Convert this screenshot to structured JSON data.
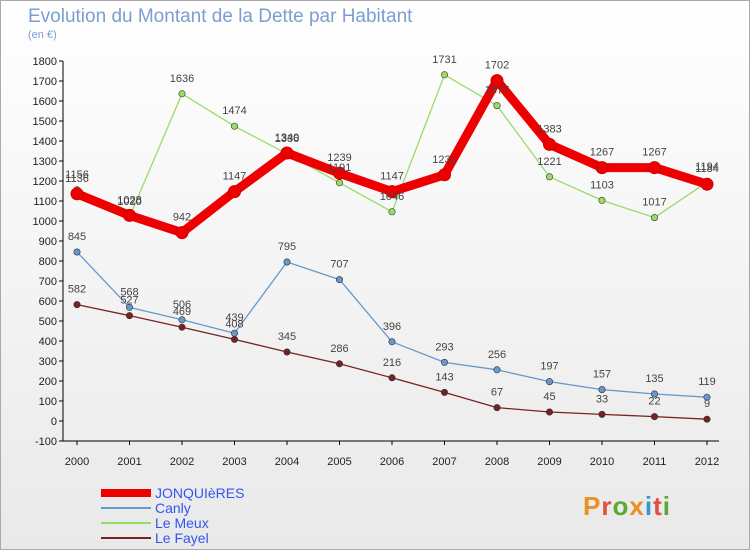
{
  "title": "Evolution du Montant de la Dette par Habitant",
  "subtitle": "(en €)",
  "logo": "Proxiti",
  "chart_data": {
    "type": "line",
    "x": [
      "2000",
      "2001",
      "2002",
      "2003",
      "2004",
      "2005",
      "2006",
      "2007",
      "2008",
      "2009",
      "2010",
      "2011",
      "2012"
    ],
    "ylim": [
      -100,
      1800
    ],
    "yticks": [
      -100,
      0,
      100,
      200,
      300,
      400,
      500,
      600,
      700,
      800,
      900,
      1000,
      1100,
      1200,
      1300,
      1400,
      1500,
      1600,
      1700,
      1800
    ],
    "grid": false,
    "legend_position": "bottom-left",
    "series": [
      {
        "name": "JONQUIèRES",
        "color": "#ee0000",
        "values": [
          1136,
          1028,
          942,
          1147,
          1340,
          1239,
          1147,
          1231,
          1702,
          1383,
          1267,
          1267,
          1184
        ]
      },
      {
        "name": "Canly",
        "color": "#6699cc",
        "values": [
          845,
          568,
          506,
          439,
          795,
          707,
          396,
          293,
          256,
          197,
          157,
          135,
          119
        ]
      },
      {
        "name": "Le Meux",
        "color": "#99dd66",
        "values": [
          1156,
          1020,
          1636,
          1474,
          1336,
          1191,
          1046,
          1731,
          1577,
          1221,
          1103,
          1017,
          1194
        ]
      },
      {
        "name": "Le Fayel",
        "color": "#772222",
        "values": [
          582,
          527,
          469,
          408,
          345,
          286,
          216,
          143,
          67,
          45,
          33,
          22,
          9
        ]
      }
    ]
  }
}
